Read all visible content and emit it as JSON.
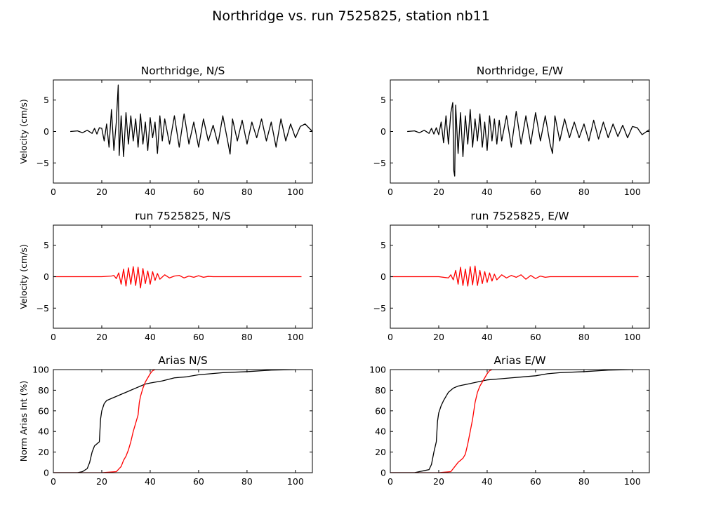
{
  "figure": {
    "title": "Northridge vs. run 7525825, station nb11"
  },
  "colors": {
    "observed": "#000000",
    "simulated": "#ff0000",
    "axes": "#000000",
    "background": "#ffffff"
  },
  "chart_data": [
    {
      "type": "line",
      "title": "Northridge, N/S",
      "xlabel": "",
      "ylabel": "Velocity (cm/s)",
      "xlim": [
        0,
        107
      ],
      "ylim": [
        -8.2,
        8.2
      ],
      "xticks": [
        0,
        20,
        40,
        60,
        80,
        100
      ],
      "yticks": [
        -5,
        0,
        5
      ],
      "grid": false,
      "series": [
        {
          "color": "#000000",
          "x": [
            7,
            10,
            12,
            14,
            16,
            17,
            18,
            19,
            20,
            21,
            22,
            23,
            24,
            25,
            26,
            26.8,
            27.2,
            28,
            29,
            30,
            31,
            32,
            33,
            34,
            35,
            36,
            37,
            38,
            39,
            40,
            41,
            42,
            43,
            44,
            45,
            46,
            48,
            50,
            52,
            54,
            56,
            58,
            60,
            62,
            64,
            66,
            68,
            70,
            72,
            73,
            74,
            76,
            78,
            80,
            82,
            84,
            86,
            88,
            90,
            92,
            94,
            96,
            98,
            100,
            102,
            104,
            107
          ],
          "y": [
            0,
            0.1,
            -0.2,
            0.2,
            -0.3,
            0.5,
            -0.4,
            0.6,
            0.5,
            -1.5,
            1.2,
            -2.5,
            3.5,
            -3,
            1.5,
            7.4,
            -3.8,
            2.5,
            -4,
            3,
            -2,
            2.5,
            -1.5,
            2,
            -2.5,
            2.8,
            -2,
            1.5,
            -3,
            2.2,
            -1,
            1.5,
            -3.5,
            2.5,
            -1.5,
            2,
            -2,
            2.5,
            -2.5,
            2.8,
            -2,
            1.5,
            -2.5,
            2,
            -1.5,
            1,
            -2,
            2.5,
            -1.5,
            -3.6,
            2,
            -1.5,
            1.8,
            -2,
            1.5,
            -1,
            2,
            -1.5,
            1.5,
            -2.5,
            2,
            -1.5,
            1.2,
            -1,
            0.8,
            1.2,
            0
          ]
        }
      ]
    },
    {
      "type": "line",
      "title": "Northridge, E/W",
      "xlabel": "",
      "ylabel": "",
      "xlim": [
        0,
        107
      ],
      "ylim": [
        -8.2,
        8.2
      ],
      "xticks": [
        0,
        20,
        40,
        60,
        80,
        100
      ],
      "yticks": [
        -5,
        0,
        5
      ],
      "grid": false,
      "series": [
        {
          "color": "#000000",
          "x": [
            7,
            10,
            12,
            14,
            16,
            17,
            18,
            19,
            20,
            21,
            22,
            23,
            24,
            25,
            25.8,
            26.2,
            26.6,
            27,
            28,
            29,
            30,
            31,
            32,
            33,
            34,
            35,
            36,
            37,
            38,
            39,
            40,
            41,
            42,
            43,
            44,
            45,
            46,
            48,
            50,
            52,
            54,
            56,
            58,
            60,
            62,
            64,
            66,
            67,
            68,
            70,
            72,
            74,
            76,
            78,
            80,
            82,
            84,
            86,
            88,
            90,
            92,
            94,
            96,
            98,
            100,
            102,
            104,
            107
          ],
          "y": [
            0,
            0.1,
            -0.2,
            0.2,
            -0.3,
            0.5,
            -0.4,
            0.6,
            -0.5,
            1.5,
            -1.8,
            2.5,
            -2,
            3,
            4.6,
            -6.2,
            -7.1,
            4.2,
            -3.5,
            3,
            -4,
            2.5,
            -2,
            3.5,
            -2.5,
            2,
            -1.5,
            2.8,
            -2.5,
            1.5,
            -3,
            2.5,
            -1.5,
            2,
            -2,
            1.8,
            -1.5,
            2.5,
            -2.5,
            3.2,
            -2,
            2.5,
            -2,
            3,
            -1.5,
            2.5,
            -2,
            -3.5,
            2.5,
            -1.5,
            2,
            -1,
            1.5,
            -1,
            1.2,
            -1.5,
            1.8,
            -1.2,
            1.5,
            -1,
            1.2,
            -0.8,
            1,
            -1,
            0.8,
            0.6,
            -0.5,
            0.3
          ]
        }
      ]
    },
    {
      "type": "line",
      "title": "run 7525825, N/S",
      "xlabel": "",
      "ylabel": "Velocity (cm/s)",
      "xlim": [
        0,
        107
      ],
      "ylim": [
        -8.2,
        8.2
      ],
      "xticks": [
        0,
        20,
        40,
        60,
        80,
        100
      ],
      "yticks": [
        -5,
        0,
        5
      ],
      "grid": false,
      "series": [
        {
          "color": "#ff0000",
          "x": [
            0,
            20,
            24,
            25,
            26,
            27,
            28,
            29,
            30,
            31,
            32,
            33,
            34,
            35,
            36,
            37,
            38,
            39,
            40,
            41,
            42,
            43,
            44,
            46,
            48,
            50,
            52,
            54,
            56,
            58,
            60,
            62,
            64,
            66,
            70,
            80,
            90,
            100,
            102.5
          ],
          "y": [
            0,
            0,
            0.1,
            0.2,
            -0.3,
            0.6,
            -1.2,
            1.2,
            -1.5,
            1.4,
            -1.2,
            1.6,
            -1.4,
            1.5,
            -1.8,
            1.3,
            -1.1,
            0.9,
            -1.2,
            0.8,
            -0.6,
            0.5,
            -0.4,
            0.3,
            -0.2,
            0.1,
            0.2,
            -0.2,
            0.1,
            -0.1,
            0.15,
            -0.1,
            0.05,
            0,
            0,
            0,
            0,
            0,
            0
          ]
        }
      ]
    },
    {
      "type": "line",
      "title": "run 7525825, E/W",
      "xlabel": "",
      "ylabel": "",
      "xlim": [
        0,
        107
      ],
      "ylim": [
        -8.2,
        8.2
      ],
      "xticks": [
        0,
        20,
        40,
        60,
        80,
        100
      ],
      "yticks": [
        -5,
        0,
        5
      ],
      "grid": false,
      "series": [
        {
          "color": "#ff0000",
          "x": [
            0,
            20,
            24,
            25,
            26,
            27,
            28,
            29,
            30,
            31,
            32,
            33,
            34,
            35,
            36,
            37,
            38,
            39,
            40,
            41,
            42,
            43,
            44,
            46,
            48,
            50,
            52,
            54,
            56,
            58,
            60,
            62,
            64,
            66,
            70,
            80,
            90,
            100,
            102.5
          ],
          "y": [
            0,
            0,
            -0.2,
            0.3,
            -0.5,
            1,
            -1.2,
            1.5,
            -1.4,
            1.2,
            -1.5,
            1.6,
            -1.3,
            1.7,
            -1.4,
            1,
            -1.1,
            0.8,
            -0.9,
            0.6,
            -0.7,
            0.4,
            -0.5,
            0.3,
            -0.2,
            0.2,
            -0.1,
            0.3,
            -0.4,
            0.2,
            -0.3,
            0.1,
            -0.1,
            0,
            0,
            0,
            0,
            0,
            0
          ]
        }
      ]
    },
    {
      "type": "line",
      "title": "Arias N/S",
      "xlabel": "",
      "ylabel": "Norm Arias Int (%)",
      "xlim": [
        0,
        107
      ],
      "ylim": [
        0,
        100
      ],
      "xticks": [
        0,
        20,
        40,
        60,
        80,
        100
      ],
      "yticks": [
        0,
        20,
        40,
        60,
        80,
        100
      ],
      "grid": false,
      "series": [
        {
          "color": "#000000",
          "x": [
            0,
            10,
            12,
            14,
            15,
            16,
            17,
            18,
            19,
            19.5,
            20,
            21,
            22,
            24,
            26,
            28,
            30,
            32,
            34,
            36,
            38,
            40,
            45,
            50,
            55,
            60,
            65,
            70,
            80,
            90,
            100
          ],
          "y": [
            0,
            0,
            1,
            4,
            10,
            20,
            26,
            28,
            30,
            52,
            60,
            67,
            70,
            72,
            74,
            76,
            78,
            80,
            82,
            84,
            86,
            87,
            89,
            92,
            93,
            95,
            96,
            97,
            98,
            99.5,
            100
          ]
        },
        {
          "color": "#ff0000",
          "x": [
            0,
            20,
            26,
            28,
            29,
            30,
            31,
            32,
            33,
            34,
            35,
            35.5,
            36,
            37,
            38,
            39,
            40,
            41,
            42
          ],
          "y": [
            0,
            0,
            1,
            6,
            12,
            16,
            22,
            30,
            40,
            48,
            56,
            68,
            74,
            82,
            88,
            92,
            96,
            99,
            100
          ]
        }
      ]
    },
    {
      "type": "line",
      "title": "Arias E/W",
      "xlabel": "",
      "ylabel": "",
      "xlim": [
        0,
        107
      ],
      "ylim": [
        0,
        100
      ],
      "xticks": [
        0,
        20,
        40,
        60,
        80,
        100
      ],
      "yticks": [
        0,
        20,
        40,
        60,
        80,
        100
      ],
      "grid": false,
      "series": [
        {
          "color": "#000000",
          "x": [
            0,
            10,
            12,
            14,
            16,
            17,
            18,
            19,
            19.5,
            20,
            21,
            22,
            24,
            26,
            28,
            30,
            32,
            34,
            36,
            38,
            40,
            45,
            50,
            55,
            60,
            65,
            70,
            80,
            90,
            100
          ],
          "y": [
            0,
            0,
            1,
            2,
            3,
            8,
            20,
            30,
            50,
            58,
            65,
            70,
            78,
            82,
            84,
            85,
            86,
            87,
            88,
            89,
            90,
            91,
            92,
            93,
            94,
            96,
            97,
            98,
            99.5,
            100
          ]
        },
        {
          "color": "#ff0000",
          "x": [
            0,
            20,
            25,
            27,
            28,
            29,
            30,
            31,
            32,
            33,
            34,
            35,
            36,
            37,
            38,
            39,
            40,
            41,
            42
          ],
          "y": [
            0,
            0,
            1,
            7,
            10,
            12,
            14,
            18,
            28,
            40,
            52,
            68,
            78,
            84,
            88,
            92,
            96,
            99,
            100
          ]
        }
      ]
    }
  ]
}
